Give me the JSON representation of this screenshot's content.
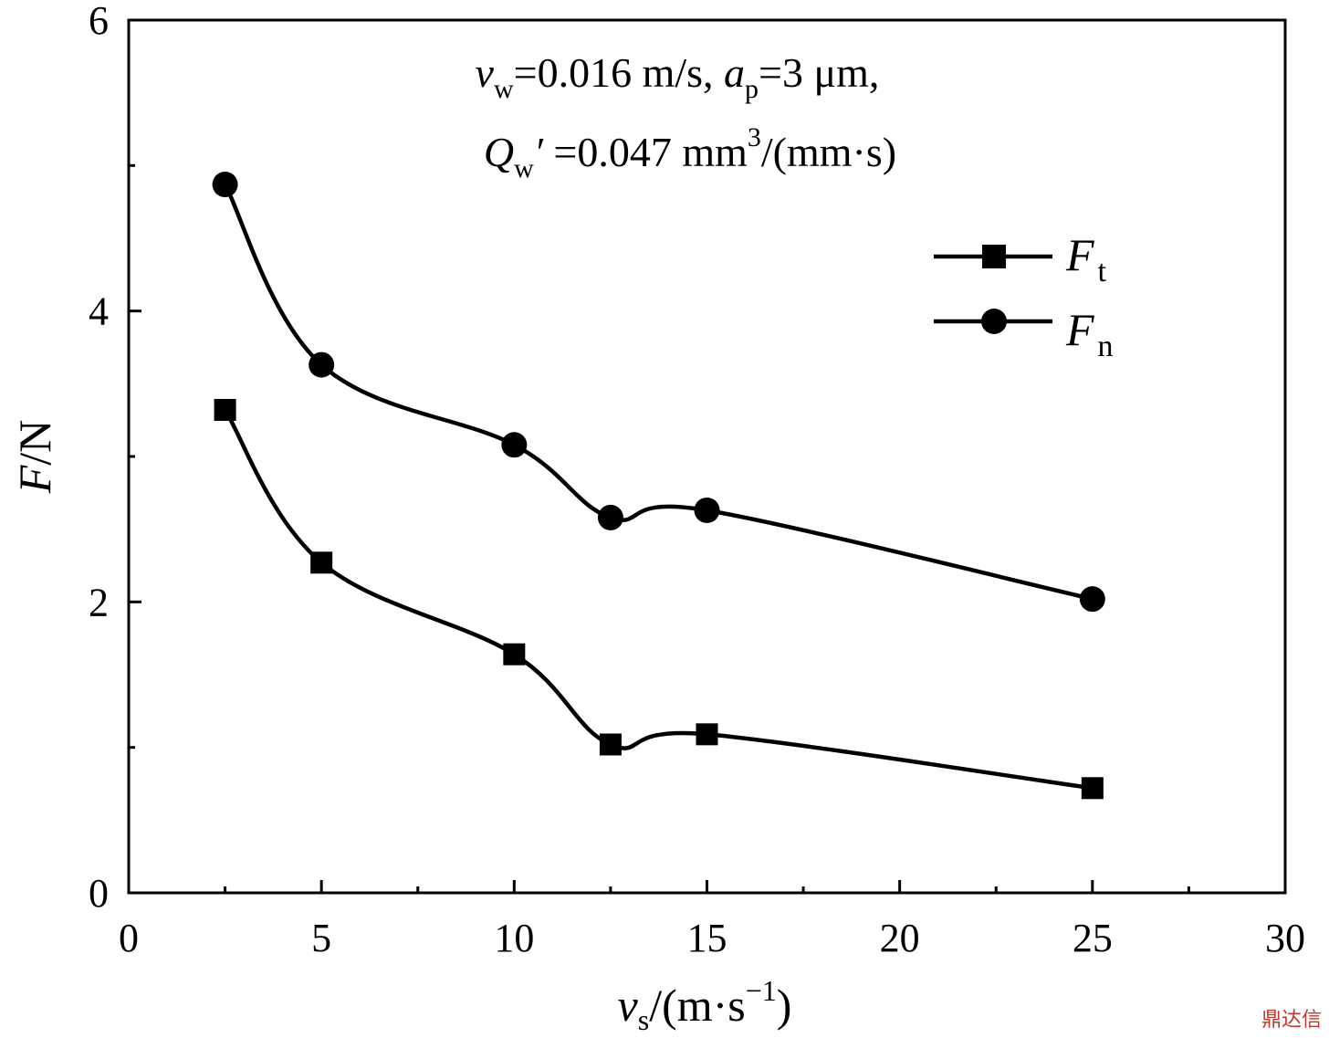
{
  "chart_data": {
    "type": "line",
    "x_label": {
      "main": "v",
      "sub": "s",
      "rest": "/(m·s",
      "sup": "−1",
      "close": ")"
    },
    "y_label": {
      "main": "F",
      "rest": "/N"
    },
    "xlim": [
      0,
      30
    ],
    "ylim": [
      0,
      6
    ],
    "x_ticks": [
      0,
      5,
      10,
      15,
      20,
      25,
      30
    ],
    "x_tick_labels": [
      "0",
      "5",
      "10",
      "15",
      "20",
      "25",
      "30"
    ],
    "y_ticks": [
      0,
      2,
      4,
      6
    ],
    "y_tick_labels": [
      "0",
      "2",
      "4",
      "6"
    ],
    "x_minor_ticks": [
      2.5,
      7.5,
      12.5,
      17.5,
      22.5,
      27.5
    ],
    "y_minor_ticks": [
      1,
      3,
      5
    ],
    "grid": false,
    "legend_position": "top-right",
    "annotation": {
      "line1": {
        "v": "v",
        "w": "w",
        "eq1": "=0.016 m/s, ",
        "a": "a",
        "p": "p",
        "eq2": "=3 μm,"
      },
      "line2": {
        "Q": "Q",
        "w": "w",
        "prime": "′",
        "eq": " =0.047 mm",
        "sup": "3",
        "unit": "/(mm·s)"
      }
    },
    "series": [
      {
        "name_main": "F",
        "name_sub": "t",
        "marker": "square",
        "x": [
          2.5,
          5,
          10,
          12.5,
          15,
          25
        ],
        "y": [
          3.32,
          2.27,
          1.64,
          1.02,
          1.09,
          0.72
        ]
      },
      {
        "name_main": "F",
        "name_sub": "n",
        "marker": "circle",
        "x": [
          2.5,
          5,
          10,
          12.5,
          15,
          25
        ],
        "y": [
          4.87,
          3.63,
          3.08,
          2.58,
          2.63,
          2.02
        ]
      }
    ]
  },
  "watermark": "鼎达信"
}
